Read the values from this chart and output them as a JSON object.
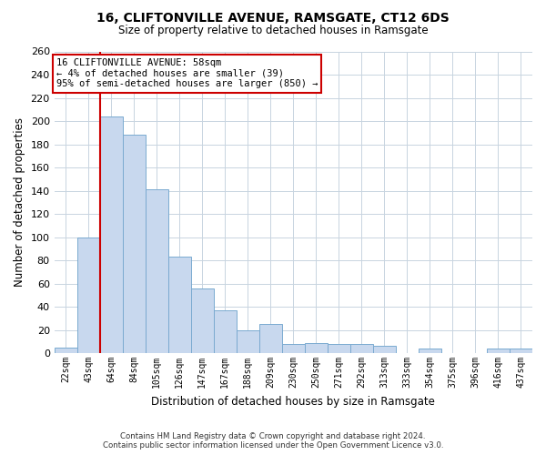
{
  "title": "16, CLIFTONVILLE AVENUE, RAMSGATE, CT12 6DS",
  "subtitle": "Size of property relative to detached houses in Ramsgate",
  "xlabel": "Distribution of detached houses by size in Ramsgate",
  "ylabel": "Number of detached properties",
  "bar_color": "#c8d8ee",
  "bar_edge_color": "#7aaad0",
  "bin_labels": [
    "22sqm",
    "43sqm",
    "64sqm",
    "84sqm",
    "105sqm",
    "126sqm",
    "147sqm",
    "167sqm",
    "188sqm",
    "209sqm",
    "230sqm",
    "250sqm",
    "271sqm",
    "292sqm",
    "313sqm",
    "333sqm",
    "354sqm",
    "375sqm",
    "396sqm",
    "416sqm",
    "437sqm"
  ],
  "bar_heights": [
    5,
    100,
    204,
    188,
    141,
    83,
    56,
    37,
    20,
    25,
    8,
    9,
    8,
    8,
    6,
    0,
    4,
    0,
    0,
    4,
    4
  ],
  "ylim": [
    0,
    260
  ],
  "yticks": [
    0,
    20,
    40,
    60,
    80,
    100,
    120,
    140,
    160,
    180,
    200,
    220,
    240,
    260
  ],
  "property_line_x": 1.5,
  "annotation_line1": "16 CLIFTONVILLE AVENUE: 58sqm",
  "annotation_line2": "← 4% of detached houses are smaller (39)",
  "annotation_line3": "95% of semi-detached houses are larger (850) →",
  "annotation_box_color": "#ffffff",
  "annotation_box_edge": "#cc0000",
  "property_line_color": "#cc0000",
  "footer_line1": "Contains HM Land Registry data © Crown copyright and database right 2024.",
  "footer_line2": "Contains public sector information licensed under the Open Government Licence v3.0.",
  "background_color": "#ffffff",
  "grid_color": "#c8d4e0"
}
